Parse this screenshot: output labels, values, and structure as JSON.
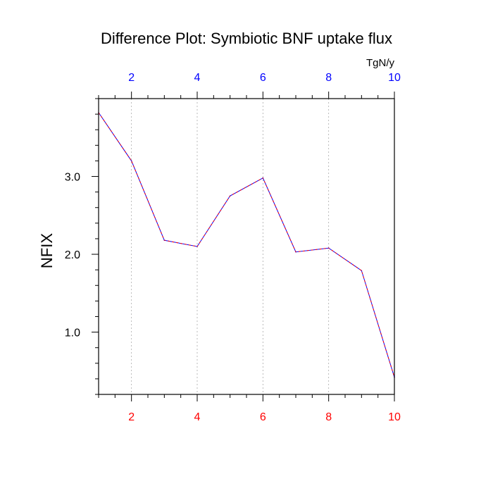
{
  "chart_data": {
    "type": "line",
    "title": "Difference Plot: Symbiotic BNF uptake flux",
    "units_label": "TgN/y",
    "ylabel": "NFIX",
    "xlabel": "",
    "x": [
      1,
      2,
      3,
      4,
      5,
      6,
      7,
      8,
      9,
      10
    ],
    "series": [
      {
        "values": [
          3.82,
          3.2,
          2.18,
          2.1,
          2.75,
          2.98,
          2.03,
          2.08,
          1.79,
          0.42
        ],
        "colors": [
          "#0000ff",
          "#ff0000"
        ],
        "line_style": "dashed"
      }
    ],
    "xlim": [
      1,
      10
    ],
    "ylim": [
      0.2,
      4.0
    ],
    "x_ticks": [
      2,
      4,
      6,
      8,
      10
    ],
    "x_tick_labels": [
      "2",
      "4",
      "6",
      "8",
      "10"
    ],
    "y_ticks": [
      1.0,
      2.0,
      3.0
    ],
    "y_tick_labels": [
      "1.0",
      "2.0",
      "3.0"
    ],
    "bottom_tick_color": "#ff0000",
    "top_tick_color": "#0000ff",
    "grid": "vertical dashed"
  }
}
